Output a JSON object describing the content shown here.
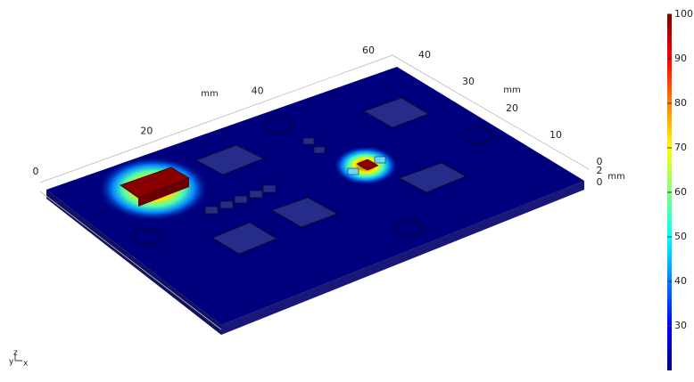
{
  "chart_data": {
    "type": "surface3d",
    "colorbar": {
      "lim": [
        20,
        100
      ],
      "ticks": [
        30,
        40,
        50,
        60,
        70,
        80,
        90,
        100
      ],
      "colormap": [
        "#00007f",
        "#0000ff",
        "#007fff",
        "#00ffff",
        "#7fff7f",
        "#ffff00",
        "#ff7f00",
        "#ff0000",
        "#7f0000"
      ]
    },
    "hotspots": [
      {
        "value": 100
      },
      {
        "value": 98
      }
    ],
    "axes": {
      "x": {
        "label": "mm",
        "ticks": [
          0,
          20,
          40,
          60
        ]
      },
      "y": {
        "label": "mm",
        "ticks": [
          0,
          10,
          20,
          30,
          40
        ]
      },
      "z": {
        "label": "mm",
        "ticks": [
          0,
          2
        ]
      }
    },
    "triad": [
      "y",
      "z",
      "x"
    ]
  }
}
